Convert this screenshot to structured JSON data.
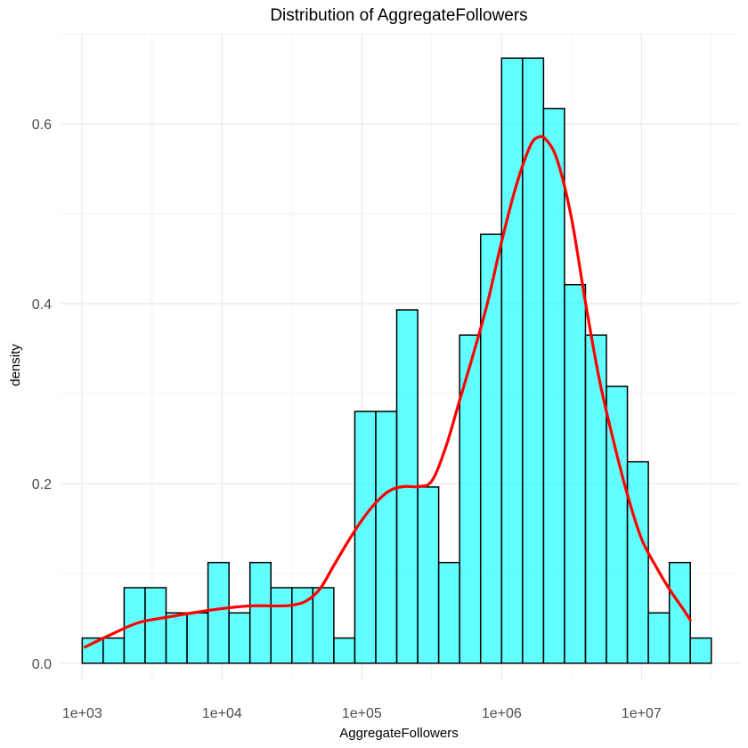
{
  "chart_data": {
    "type": "bar",
    "title": "Distribution of AggregateFollowers",
    "xlabel": "AggregateFollowers",
    "ylabel": "density",
    "x_scale": "log10",
    "xlim": [
      700,
      50000000
    ],
    "ylim": [
      -0.02,
      0.7
    ],
    "x_ticks": [
      {
        "value": 1000,
        "label": "1e+03"
      },
      {
        "value": 10000,
        "label": "1e+04"
      },
      {
        "value": 100000,
        "label": "1e+05"
      },
      {
        "value": 1000000,
        "label": "1e+06"
      },
      {
        "value": 10000000,
        "label": "1e+07"
      }
    ],
    "y_ticks": [
      {
        "value": 0.0,
        "label": "0.0"
      },
      {
        "value": 0.2,
        "label": "0.2"
      },
      {
        "value": 0.4,
        "label": "0.4"
      },
      {
        "value": 0.6,
        "label": "0.6"
      }
    ],
    "grid": true,
    "bars": {
      "fill": "#00ffff",
      "fill_opacity": 0.62,
      "stroke": "#000000",
      "bins_log10": [
        {
          "x0": 3.0,
          "x1": 3.15,
          "y": 0.028
        },
        {
          "x0": 3.15,
          "x1": 3.3,
          "y": 0.028
        },
        {
          "x0": 3.3,
          "x1": 3.45,
          "y": 0.084
        },
        {
          "x0": 3.45,
          "x1": 3.6,
          "y": 0.084
        },
        {
          "x0": 3.6,
          "x1": 3.75,
          "y": 0.056
        },
        {
          "x0": 3.75,
          "x1": 3.9,
          "y": 0.056
        },
        {
          "x0": 3.9,
          "x1": 4.05,
          "y": 0.112
        },
        {
          "x0": 4.05,
          "x1": 4.2,
          "y": 0.056
        },
        {
          "x0": 4.2,
          "x1": 4.35,
          "y": 0.112
        },
        {
          "x0": 4.35,
          "x1": 4.5,
          "y": 0.084
        },
        {
          "x0": 4.5,
          "x1": 4.65,
          "y": 0.084
        },
        {
          "x0": 4.65,
          "x1": 4.8,
          "y": 0.084
        },
        {
          "x0": 4.8,
          "x1": 4.95,
          "y": 0.028
        },
        {
          "x0": 4.95,
          "x1": 5.1,
          "y": 0.28
        },
        {
          "x0": 5.1,
          "x1": 5.25,
          "y": 0.28
        },
        {
          "x0": 5.25,
          "x1": 5.4,
          "y": 0.393
        },
        {
          "x0": 5.4,
          "x1": 5.55,
          "y": 0.196
        },
        {
          "x0": 5.55,
          "x1": 5.7,
          "y": 0.112
        },
        {
          "x0": 5.7,
          "x1": 5.85,
          "y": 0.365
        },
        {
          "x0": 5.85,
          "x1": 6.0,
          "y": 0.477
        },
        {
          "x0": 6.0,
          "x1": 6.15,
          "y": 0.673
        },
        {
          "x0": 6.15,
          "x1": 6.3,
          "y": 0.673
        },
        {
          "x0": 6.3,
          "x1": 6.45,
          "y": 0.617
        },
        {
          "x0": 6.45,
          "x1": 6.6,
          "y": 0.421
        },
        {
          "x0": 6.6,
          "x1": 6.75,
          "y": 0.365
        },
        {
          "x0": 6.75,
          "x1": 6.9,
          "y": 0.308
        },
        {
          "x0": 6.9,
          "x1": 7.05,
          "y": 0.224
        },
        {
          "x0": 7.05,
          "x1": 7.2,
          "y": 0.056
        },
        {
          "x0": 7.2,
          "x1": 7.35,
          "y": 0.112
        },
        {
          "x0": 7.35,
          "x1": 7.5,
          "y": 0.028
        }
      ]
    },
    "density_curve": {
      "color": "#ff0000",
      "points_log10": [
        [
          3.02,
          0.024
        ],
        [
          3.2,
          0.042
        ],
        [
          3.4,
          0.06
        ],
        [
          3.6,
          0.068
        ],
        [
          3.8,
          0.075
        ],
        [
          4.0,
          0.081
        ],
        [
          4.2,
          0.085
        ],
        [
          4.4,
          0.085
        ],
        [
          4.5,
          0.086
        ],
        [
          4.6,
          0.092
        ],
        [
          4.7,
          0.11
        ],
        [
          4.8,
          0.145
        ],
        [
          4.9,
          0.18
        ],
        [
          5.0,
          0.212
        ],
        [
          5.1,
          0.238
        ],
        [
          5.2,
          0.256
        ],
        [
          5.3,
          0.262
        ],
        [
          5.4,
          0.262
        ],
        [
          5.5,
          0.27
        ],
        [
          5.6,
          0.32
        ],
        [
          5.7,
          0.39
        ],
        [
          5.8,
          0.46
        ],
        [
          5.9,
          0.535
        ],
        [
          6.0,
          0.625
        ],
        [
          6.1,
          0.705
        ],
        [
          6.2,
          0.765
        ],
        [
          6.26,
          0.78
        ],
        [
          6.32,
          0.776
        ],
        [
          6.4,
          0.745
        ],
        [
          6.5,
          0.66
        ],
        [
          6.6,
          0.535
        ],
        [
          6.7,
          0.42
        ],
        [
          6.8,
          0.33
        ],
        [
          6.9,
          0.25
        ],
        [
          7.0,
          0.185
        ],
        [
          7.1,
          0.145
        ],
        [
          7.2,
          0.11
        ],
        [
          7.3,
          0.08
        ],
        [
          7.35,
          0.064
        ]
      ],
      "y_scale_factor": 0.75
    }
  }
}
